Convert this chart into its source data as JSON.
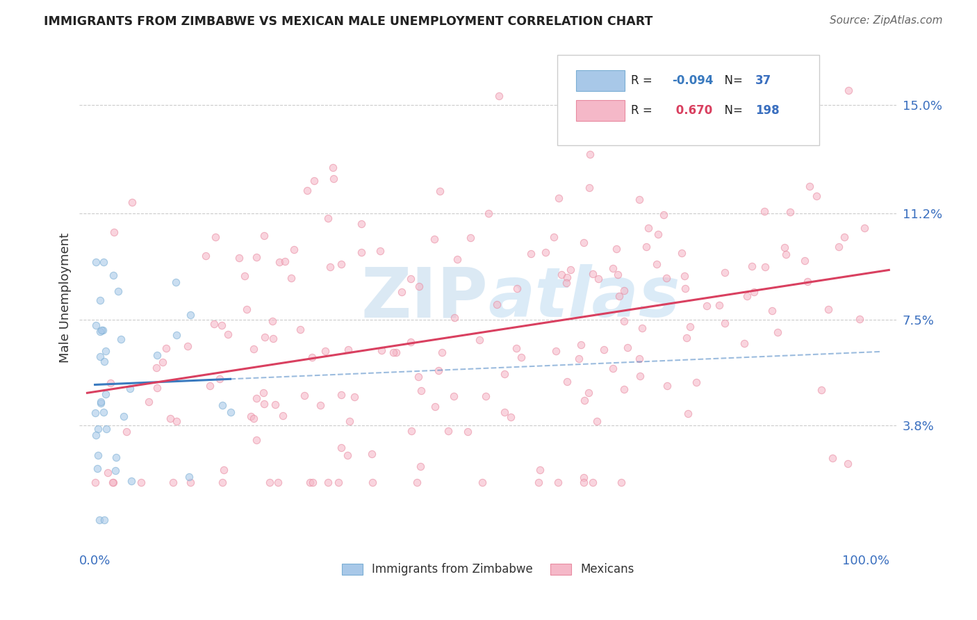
{
  "title": "IMMIGRANTS FROM ZIMBABWE VS MEXICAN MALE UNEMPLOYMENT CORRELATION CHART",
  "source": "Source: ZipAtlas.com",
  "ylabel": "Male Unemployment",
  "legend_label1": "Immigrants from Zimbabwe",
  "legend_label2": "Mexicans",
  "r1": "-0.094",
  "n1": "37",
  "r2": "0.670",
  "n2": "198",
  "color1_face": "#a8c8e8",
  "color1_edge": "#7aaed4",
  "color2_face": "#f5b8c8",
  "color2_edge": "#e88aa0",
  "line1_color": "#3a7abf",
  "line2_color": "#d94060",
  "ytick_vals": [
    0.038,
    0.075,
    0.112,
    0.15
  ],
  "ytick_labels": [
    "3.8%",
    "7.5%",
    "11.2%",
    "15.0%"
  ],
  "xtick_vals": [
    0.0,
    1.0
  ],
  "xtick_labels": [
    "0.0%",
    "100.0%"
  ],
  "xlim": [
    -0.02,
    1.04
  ],
  "ylim": [
    -0.005,
    0.17
  ],
  "background_color": "#ffffff",
  "title_color": "#222222",
  "source_color": "#666666",
  "axis_label_color": "#333333",
  "tick_label_color": "#3a6fbf",
  "grid_color": "#cccccc",
  "watermark_color": "#cce0f0",
  "legend_r1_color": "#3a7abf",
  "legend_r2_color": "#d94060",
  "legend_n_color": "#3a6fbf"
}
